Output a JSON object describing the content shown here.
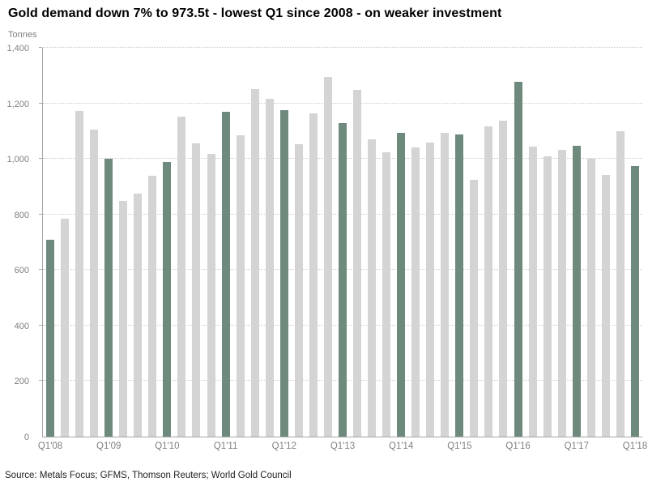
{
  "chart_data": {
    "type": "bar",
    "title": "Gold demand down 7% to 973.5t - lowest Q1 since 2008 - on weaker investment",
    "ylabel": "Tonnes",
    "xlabel": "",
    "source": "Source: Metals Focus; GFMS, Thomson Reuters; World Gold Council",
    "ylim": [
      0,
      1400
    ],
    "ytick_step": 200,
    "ytick_labels": [
      "0",
      "200",
      "400",
      "600",
      "800",
      "1,000",
      "1,200",
      "1,400"
    ],
    "grid": "horizontal dotted lines",
    "legend": "none",
    "categories": [
      "Q1'08",
      "Q2'08",
      "Q3'08",
      "Q4'08",
      "Q1'09",
      "Q2'09",
      "Q3'09",
      "Q4'09",
      "Q1'10",
      "Q2'10",
      "Q3'10",
      "Q4'10",
      "Q1'11",
      "Q2'11",
      "Q3'11",
      "Q4'11",
      "Q1'12",
      "Q2'12",
      "Q3'12",
      "Q4'12",
      "Q1'13",
      "Q2'13",
      "Q3'13",
      "Q4'13",
      "Q1'14",
      "Q2'14",
      "Q3'14",
      "Q4'14",
      "Q1'15",
      "Q2'15",
      "Q3'15",
      "Q4'15",
      "Q1'16",
      "Q2'16",
      "Q3'16",
      "Q4'16",
      "Q1'17",
      "Q2'17",
      "Q3'17",
      "Q4'17",
      "Q1'18"
    ],
    "values": [
      708,
      785,
      1172,
      1106,
      1000,
      848,
      875,
      938,
      989,
      1152,
      1055,
      1018,
      1169,
      1086,
      1251,
      1215,
      1176,
      1052,
      1164,
      1294,
      1130,
      1248,
      1070,
      1023,
      1093,
      1041,
      1059,
      1094,
      1088,
      926,
      1117,
      1137,
      1278,
      1045,
      1009,
      1033,
      1047,
      1000,
      941,
      1099,
      973.5
    ],
    "xtick_labels": [
      "Q1'08",
      "Q1'09",
      "Q1'10",
      "Q1'11",
      "Q1'12",
      "Q1'13",
      "Q1'14",
      "Q1'15",
      "Q1'16",
      "Q1'17",
      "Q1'18"
    ],
    "highlight": {
      "rule": "Q1 quarters highlighted",
      "indices": [
        0,
        4,
        8,
        12,
        16,
        20,
        24,
        28,
        32,
        36,
        40
      ]
    },
    "colors": {
      "q1_bar": "#6d8a7c",
      "other_bar": "#d4d4d4",
      "gridline": "#c9c9c9",
      "axis": "#a6a6a6",
      "axis_text": "#808080",
      "title_text": "#000000",
      "source_text": "#1f1f1f"
    }
  }
}
